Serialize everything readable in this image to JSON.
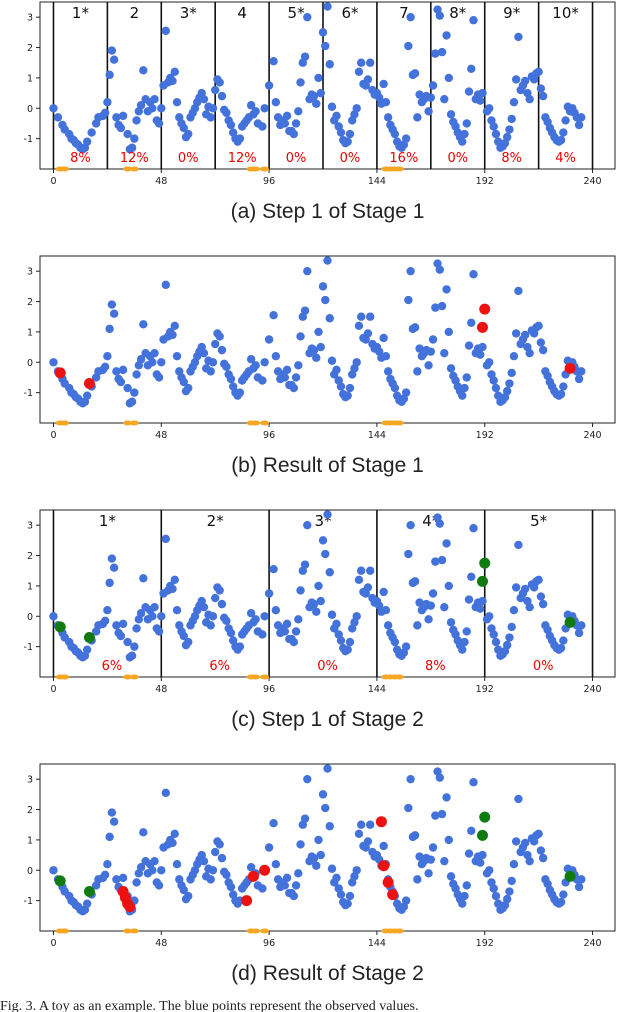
{
  "chart_data": [
    {
      "type": "scatter",
      "caption": "(a) Step 1 of Stage 1",
      "xlim": [
        -6,
        250
      ],
      "ylim": [
        -2,
        3.5
      ],
      "xticks": [
        "0",
        "48",
        "96",
        "144",
        "192",
        "240"
      ],
      "yticks": [
        "3",
        "2",
        "1",
        "0",
        "-1"
      ],
      "boundaries": [
        0,
        24,
        48,
        72,
        96,
        120,
        144,
        168,
        192,
        216,
        240
      ],
      "segment_labels": [
        "1*",
        "2",
        "3*",
        "4",
        "5*",
        "6*",
        "7",
        "8*",
        "9*",
        "10*"
      ],
      "percentages": [
        "8%",
        "12%",
        "0%",
        "12%",
        "0%",
        "0%",
        "16%",
        "0%",
        "8%",
        "4%"
      ],
      "percentage_x": [
        12,
        36,
        60,
        84,
        108,
        132,
        156,
        180,
        204,
        228
      ],
      "red_points": [],
      "green_points": []
    },
    {
      "type": "scatter",
      "caption": "(b) Result of Stage 1",
      "xlim": [
        -6,
        250
      ],
      "ylim": [
        -2,
        3.5
      ],
      "xticks": [
        "0",
        "48",
        "96",
        "144",
        "192",
        "240"
      ],
      "yticks": [
        "3",
        "2",
        "1",
        "0",
        "-1"
      ],
      "boundaries": [],
      "segment_labels": [],
      "percentages": [],
      "percentage_x": [],
      "red_points": [
        [
          3,
          -0.35
        ],
        [
          16,
          -0.7
        ],
        [
          192,
          1.75
        ],
        [
          191,
          1.15
        ],
        [
          230,
          -0.2
        ]
      ],
      "green_points": []
    },
    {
      "type": "scatter",
      "caption": "(c) Step 1 of Stage 2",
      "xlim": [
        -6,
        250
      ],
      "ylim": [
        -2,
        3.5
      ],
      "xticks": [
        "0",
        "48",
        "96",
        "144",
        "192",
        "240"
      ],
      "yticks": [
        "3",
        "2",
        "1",
        "0",
        "-1"
      ],
      "boundaries": [
        0,
        48,
        96,
        144,
        192,
        240
      ],
      "segment_labels": [
        "1*",
        "2*",
        "3*",
        "4*",
        "5*"
      ],
      "percentages": [
        "6%",
        "6%",
        "0%",
        "8%",
        "0%"
      ],
      "percentage_x": [
        26,
        74,
        122,
        170,
        218
      ],
      "red_points": [],
      "green_points": [
        [
          3,
          -0.35
        ],
        [
          16,
          -0.7
        ],
        [
          192,
          1.75
        ],
        [
          191,
          1.15
        ],
        [
          230,
          -0.2
        ]
      ]
    },
    {
      "type": "scatter",
      "caption": "(d) Result of Stage 2",
      "xlim": [
        -6,
        250
      ],
      "ylim": [
        -2,
        3.5
      ],
      "xticks": [
        "0",
        "48",
        "96",
        "144",
        "192",
        "240"
      ],
      "yticks": [
        "3",
        "2",
        "1",
        "0",
        "-1"
      ],
      "boundaries": [],
      "segment_labels": [],
      "percentages": [],
      "percentage_x": [],
      "red_points": [
        [
          31,
          -0.7
        ],
        [
          32,
          -0.9
        ],
        [
          33,
          -1.1
        ],
        [
          34,
          -1.2
        ],
        [
          86,
          -1.0
        ],
        [
          89,
          -0.2
        ],
        [
          94,
          0.0
        ],
        [
          146,
          1.6
        ],
        [
          147,
          0.15
        ],
        [
          149,
          -0.4
        ],
        [
          151,
          -0.8
        ]
      ],
      "green_points": [
        [
          3,
          -0.35
        ],
        [
          16,
          -0.7
        ],
        [
          192,
          1.75
        ],
        [
          191,
          1.15
        ],
        [
          230,
          -0.2
        ]
      ]
    }
  ],
  "series": {
    "blue_points": [
      [
        0,
        0.0
      ],
      [
        2,
        -0.3
      ],
      [
        4,
        -0.55
      ],
      [
        5,
        -0.7
      ],
      [
        7,
        -0.85
      ],
      [
        8,
        -1.0
      ],
      [
        9,
        -1.05
      ],
      [
        10,
        -1.15
      ],
      [
        11,
        -1.2
      ],
      [
        12,
        -1.3
      ],
      [
        13,
        -1.35
      ],
      [
        14,
        -1.3
      ],
      [
        15,
        -1.1
      ],
      [
        17,
        -0.8
      ],
      [
        19,
        -0.5
      ],
      [
        20,
        -0.3
      ],
      [
        22,
        -0.25
      ],
      [
        23,
        -0.15
      ],
      [
        24,
        0.2
      ],
      [
        25,
        1.1
      ],
      [
        26,
        1.9
      ],
      [
        27,
        1.6
      ],
      [
        28,
        -0.3
      ],
      [
        29,
        -0.55
      ],
      [
        30,
        -0.65
      ],
      [
        31,
        -0.25
      ],
      [
        33,
        -0.85
      ],
      [
        34,
        -1.35
      ],
      [
        35,
        -1.3
      ],
      [
        36,
        -1.0
      ],
      [
        37,
        -0.4
      ],
      [
        38,
        -0.1
      ],
      [
        39,
        0.1
      ],
      [
        40,
        1.25
      ],
      [
        41,
        0.3
      ],
      [
        42,
        -0.1
      ],
      [
        43,
        0.2
      ],
      [
        44,
        0.0
      ],
      [
        45,
        0.3
      ],
      [
        46,
        -0.4
      ],
      [
        47,
        -0.5
      ],
      [
        48,
        0.0
      ],
      [
        49,
        0.75
      ],
      [
        50,
        2.55
      ],
      [
        51,
        0.85
      ],
      [
        52,
        1.0
      ],
      [
        53,
        0.9
      ],
      [
        54,
        1.2
      ],
      [
        55,
        0.2
      ],
      [
        56,
        -0.3
      ],
      [
        57,
        -0.5
      ],
      [
        58,
        -0.65
      ],
      [
        59,
        -0.95
      ],
      [
        60,
        -0.85
      ],
      [
        61,
        -0.3
      ],
      [
        62,
        -0.15
      ],
      [
        63,
        0.0
      ],
      [
        64,
        0.2
      ],
      [
        65,
        0.35
      ],
      [
        66,
        0.5
      ],
      [
        67,
        0.3
      ],
      [
        68,
        -0.2
      ],
      [
        69,
        0.05
      ],
      [
        70,
        -0.3
      ],
      [
        71,
        0.0
      ],
      [
        72,
        0.6
      ],
      [
        73,
        0.95
      ],
      [
        74,
        0.85
      ],
      [
        75,
        0.4
      ],
      [
        76,
        -0.05
      ],
      [
        77,
        -0.15
      ],
      [
        78,
        -0.4
      ],
      [
        79,
        -0.55
      ],
      [
        80,
        -0.8
      ],
      [
        81,
        -1.0
      ],
      [
        82,
        -1.1
      ],
      [
        83,
        -1.0
      ],
      [
        84,
        -0.6
      ],
      [
        85,
        -0.5
      ],
      [
        86,
        -0.4
      ],
      [
        87,
        -0.3
      ],
      [
        88,
        0.1
      ],
      [
        89,
        -0.2
      ],
      [
        90,
        -0.1
      ],
      [
        91,
        -0.5
      ],
      [
        93,
        -0.6
      ],
      [
        94,
        0.0
      ],
      [
        96,
        0.75
      ],
      [
        98,
        1.55
      ],
      [
        99,
        0.2
      ],
      [
        100,
        -0.3
      ],
      [
        101,
        -0.55
      ],
      [
        102,
        -0.4
      ],
      [
        103,
        -0.5
      ],
      [
        104,
        -0.25
      ],
      [
        105,
        -0.75
      ],
      [
        106,
        -0.75
      ],
      [
        107,
        -0.85
      ],
      [
        108,
        -0.5
      ],
      [
        109,
        -0.1
      ],
      [
        110,
        0.85
      ],
      [
        111,
        1.5
      ],
      [
        112,
        1.7
      ],
      [
        113,
        3.0
      ],
      [
        114,
        0.3
      ],
      [
        115,
        0.45
      ],
      [
        116,
        0.4
      ],
      [
        117,
        0.15
      ],
      [
        118,
        1.0
      ],
      [
        119,
        0.5
      ],
      [
        120,
        2.5
      ],
      [
        121,
        2.05
      ],
      [
        122,
        3.35
      ],
      [
        123,
        1.45
      ],
      [
        124,
        0.05
      ],
      [
        125,
        -0.4
      ],
      [
        126,
        -0.25
      ],
      [
        127,
        -0.6
      ],
      [
        128,
        -0.8
      ],
      [
        129,
        -1.05
      ],
      [
        130,
        -1.15
      ],
      [
        131,
        -1.1
      ],
      [
        132,
        -0.85
      ],
      [
        133,
        -0.4
      ],
      [
        134,
        -0.2
      ],
      [
        135,
        0.0
      ],
      [
        136,
        1.2
      ],
      [
        137,
        1.5
      ],
      [
        138,
        0.8
      ],
      [
        139,
        0.75
      ],
      [
        140,
        0.95
      ],
      [
        141,
        1.5
      ],
      [
        142,
        0.6
      ],
      [
        143,
        0.45
      ],
      [
        144,
        0.5
      ],
      [
        145,
        0.35
      ],
      [
        146,
        0.15
      ],
      [
        147,
        0.8
      ],
      [
        148,
        0.2
      ],
      [
        149,
        -0.3
      ],
      [
        150,
        -0.55
      ],
      [
        151,
        -0.7
      ],
      [
        152,
        -0.85
      ],
      [
        153,
        -1.1
      ],
      [
        154,
        -1.25
      ],
      [
        155,
        -1.3
      ],
      [
        156,
        -1.2
      ],
      [
        157,
        -1.0
      ],
      [
        158,
        2.05
      ],
      [
        159,
        3.0
      ],
      [
        160,
        1.1
      ],
      [
        161,
        1.15
      ],
      [
        162,
        -0.3
      ],
      [
        163,
        0.45
      ],
      [
        164,
        0.2
      ],
      [
        165,
        0.3
      ],
      [
        166,
        0.4
      ],
      [
        167,
        -0.1
      ],
      [
        168,
        0.35
      ],
      [
        169,
        0.75
      ],
      [
        170,
        1.8
      ],
      [
        171,
        3.25
      ],
      [
        172,
        3.05
      ],
      [
        173,
        1.85
      ],
      [
        174,
        0.3
      ],
      [
        175,
        2.4
      ],
      [
        176,
        1.0
      ],
      [
        177,
        -0.2
      ],
      [
        178,
        -0.45
      ],
      [
        179,
        -0.6
      ],
      [
        180,
        -0.8
      ],
      [
        181,
        -0.95
      ],
      [
        182,
        -1.1
      ],
      [
        183,
        -0.85
      ],
      [
        184,
        -0.5
      ],
      [
        185,
        0.55
      ],
      [
        186,
        1.3
      ],
      [
        187,
        2.9
      ],
      [
        188,
        0.3
      ],
      [
        189,
        0.45
      ],
      [
        190,
        0.25
      ],
      [
        191,
        0.5
      ],
      [
        193,
        -0.1
      ],
      [
        194,
        0.0
      ],
      [
        195,
        -0.4
      ],
      [
        196,
        -0.6
      ],
      [
        197,
        -0.85
      ],
      [
        198,
        -1.1
      ],
      [
        199,
        -1.3
      ],
      [
        200,
        -1.25
      ],
      [
        201,
        -1.15
      ],
      [
        202,
        -0.95
      ],
      [
        203,
        -0.7
      ],
      [
        204,
        -0.35
      ],
      [
        205,
        0.2
      ],
      [
        206,
        0.95
      ],
      [
        207,
        2.35
      ],
      [
        208,
        0.6
      ],
      [
        209,
        0.75
      ],
      [
        210,
        0.9
      ],
      [
        211,
        0.5
      ],
      [
        212,
        0.3
      ],
      [
        213,
        1.05
      ],
      [
        214,
        0.95
      ],
      [
        215,
        1.15
      ],
      [
        216,
        1.2
      ],
      [
        217,
        0.65
      ],
      [
        218,
        0.4
      ],
      [
        219,
        -0.3
      ],
      [
        220,
        -0.45
      ],
      [
        221,
        -0.65
      ],
      [
        222,
        -0.8
      ],
      [
        223,
        -0.95
      ],
      [
        224,
        -1.05
      ],
      [
        225,
        -1.1
      ],
      [
        226,
        -1.05
      ],
      [
        227,
        -0.8
      ],
      [
        228,
        -0.4
      ],
      [
        229,
        0.05
      ],
      [
        230,
        -0.1
      ],
      [
        231,
        0.0
      ],
      [
        232,
        -0.15
      ],
      [
        233,
        -0.3
      ],
      [
        234,
        -0.55
      ],
      [
        235,
        -0.3
      ]
    ],
    "orange_points": [
      [
        3,
        -1.95
      ],
      [
        5,
        -1.95
      ],
      [
        33,
        -1.95
      ],
      [
        36,
        -1.95
      ],
      [
        88,
        -1.95
      ],
      [
        90,
        -1.95
      ],
      [
        94,
        -1.95
      ],
      [
        148,
        -1.95
      ],
      [
        150,
        -1.95
      ],
      [
        152,
        -1.95
      ],
      [
        154,
        -1.95
      ]
    ]
  },
  "colors": {
    "blue": "#4472db",
    "red": "#ee1111",
    "green": "#117a11",
    "orange": "#f5a623",
    "boundary": "#111111"
  },
  "figure_caption": "Fig. 3.  A toy as an example. The blue points represent the observed values."
}
